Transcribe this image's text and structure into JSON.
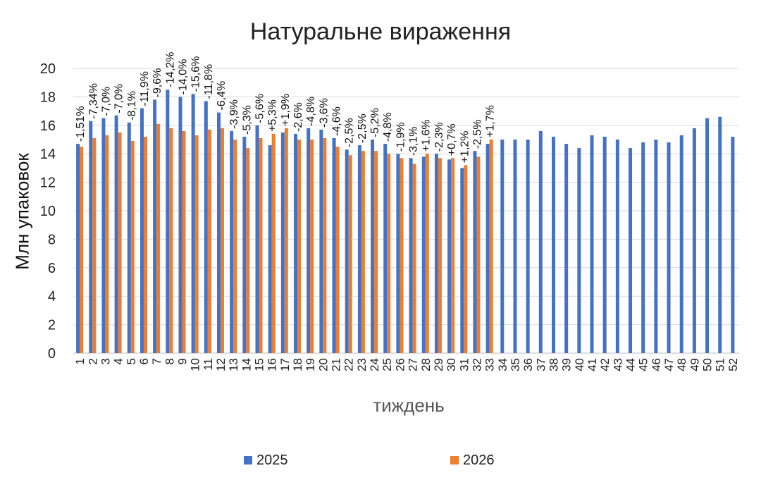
{
  "chart_data": {
    "type": "bar",
    "title": "Натуральне вираження",
    "xlabel": "тиждень",
    "ylabel": "Млн упаковок",
    "ylim": [
      0,
      20
    ],
    "yticks": [
      "0",
      "2",
      "4",
      "6",
      "8",
      "10",
      "12",
      "14",
      "16",
      "18",
      "20"
    ],
    "grid": true,
    "legend_position": "bottom",
    "categories": [
      "1",
      "2",
      "3",
      "4",
      "5",
      "6",
      "7",
      "8",
      "9",
      "10",
      "11",
      "12",
      "13",
      "14",
      "15",
      "16",
      "17",
      "18",
      "19",
      "20",
      "21",
      "22",
      "23",
      "24",
      "25",
      "26",
      "27",
      "28",
      "29",
      "30",
      "31",
      "32",
      "33",
      "34",
      "35",
      "36",
      "37",
      "38",
      "39",
      "40",
      "41",
      "42",
      "43",
      "44",
      "45",
      "46",
      "47",
      "48",
      "49",
      "50",
      "51",
      "52"
    ],
    "series": [
      {
        "name": "2025",
        "color": "#4472C4",
        "values": [
          14.7,
          16.3,
          16.5,
          16.7,
          16.2,
          17.2,
          17.8,
          18.5,
          18.0,
          18.2,
          17.7,
          16.9,
          15.6,
          15.2,
          16.0,
          14.6,
          15.5,
          15.4,
          15.8,
          15.7,
          15.1,
          14.3,
          14.6,
          15.0,
          14.7,
          14.0,
          13.7,
          13.8,
          14.0,
          13.6,
          13.0,
          14.2,
          14.7,
          15.0,
          15.0,
          15.0,
          15.6,
          15.2,
          14.7,
          14.4,
          15.3,
          15.2,
          15.0,
          14.4,
          14.8,
          15.0,
          14.8,
          15.3,
          15.8,
          16.5,
          16.6,
          15.2
        ]
      },
      {
        "name": "2026",
        "color": "#ED7D31",
        "values": [
          14.5,
          15.1,
          15.3,
          15.5,
          14.9,
          15.2,
          16.1,
          15.8,
          15.6,
          15.3,
          15.7,
          15.8,
          15.0,
          14.4,
          15.1,
          15.4,
          15.8,
          15.0,
          15.0,
          15.1,
          14.5,
          13.9,
          14.2,
          14.2,
          14.0,
          13.7,
          13.3,
          14.0,
          13.7,
          13.7,
          13.2,
          13.8,
          15.0,
          null,
          null,
          null,
          null,
          null,
          null,
          null,
          null,
          null,
          null,
          null,
          null,
          null,
          null,
          null,
          null,
          null,
          null,
          null
        ]
      }
    ],
    "annotations": [
      "-1,51%",
      "-7,34%",
      "-7,0%",
      "-7,0%",
      "-8,1%",
      "-11,9%",
      "-9,6%",
      "-14,2%",
      "-14,0%",
      "-15,6%",
      "-11,8%",
      "-6,4%",
      "-3,9%",
      "-5,3%",
      "-5,6%",
      "+5,3%",
      "+1,9%",
      "-2,6%",
      "-4,8%",
      "-3,6%",
      "-4,6%",
      "-2,5%",
      "-2,5%",
      "-5,2%",
      "-4,8%",
      "-1,9%",
      "-3,1%",
      "+1,6%",
      "-2,3%",
      "+0,7%",
      "+1,2%",
      "-2,5%",
      "+1,7%"
    ]
  }
}
